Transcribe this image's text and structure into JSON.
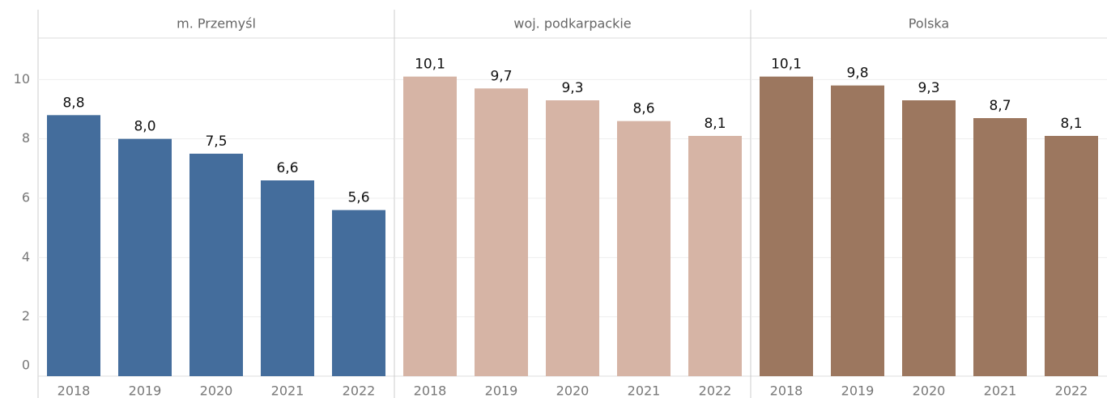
{
  "chart_data": [
    {
      "type": "bar",
      "title": "m. Przemyśl",
      "categories": [
        "2018",
        "2019",
        "2020",
        "2021",
        "2022"
      ],
      "values": [
        8.8,
        8.0,
        7.5,
        6.6,
        5.6
      ],
      "value_labels": [
        "8,8",
        "8,0",
        "7,5",
        "6,6",
        "5,6"
      ],
      "color": "#446d9c",
      "ylim": [
        0,
        11.4
      ],
      "yticks": [
        0,
        2,
        4,
        6,
        8,
        10
      ],
      "grid": true
    },
    {
      "type": "bar",
      "title": "woj. podkarpackie",
      "categories": [
        "2018",
        "2019",
        "2020",
        "2021",
        "2022"
      ],
      "values": [
        10.1,
        9.7,
        9.3,
        8.6,
        8.1
      ],
      "value_labels": [
        "10,1",
        "9,7",
        "9,3",
        "8,6",
        "8,1"
      ],
      "color": "#d6b4a5",
      "ylim": [
        0,
        11.4
      ],
      "yticks": [
        0,
        2,
        4,
        6,
        8,
        10
      ],
      "grid": true
    },
    {
      "type": "bar",
      "title": "Polska",
      "categories": [
        "2018",
        "2019",
        "2020",
        "2021",
        "2022"
      ],
      "values": [
        10.1,
        9.8,
        9.3,
        8.7,
        8.1
      ],
      "value_labels": [
        "10,1",
        "9,8",
        "9,3",
        "8,7",
        "8,1"
      ],
      "color": "#9c775f",
      "ylim": [
        0,
        11.4
      ],
      "yticks": [
        0,
        2,
        4,
        6,
        8,
        10
      ],
      "grid": true
    }
  ]
}
